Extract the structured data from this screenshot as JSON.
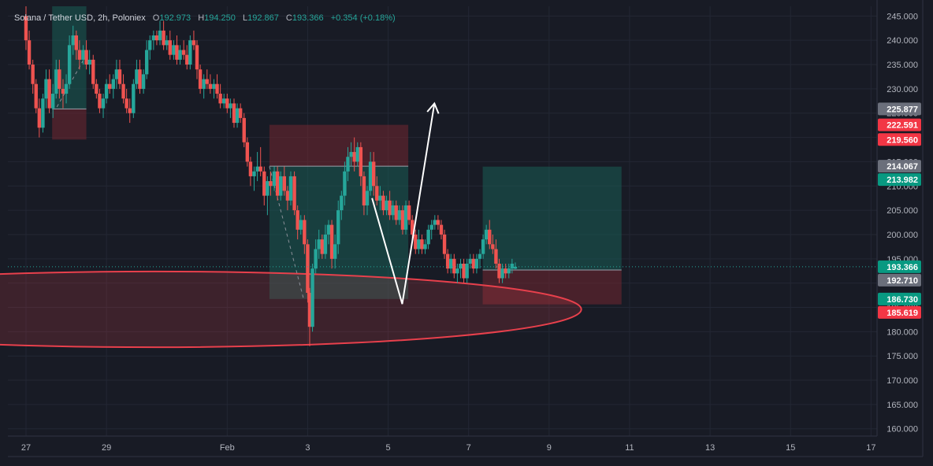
{
  "header": {
    "symbol": "Solana / Tether USD, 2h, Poloniex",
    "open_label": "O",
    "open": "192.973",
    "high_label": "H",
    "high": "194.250",
    "low_label": "L",
    "low": "192.867",
    "close_label": "C",
    "close": "193.366",
    "change": "+0.354 (+0.18%)"
  },
  "colors": {
    "background": "#181b25",
    "up": "#26a69a",
    "down": "#ef5350",
    "profit_zone": "#1a5d55",
    "loss_zone": "#6b2630",
    "ellipse": "#e8404c",
    "arrow": "#ffffff",
    "label_gray": "#6b6f7b"
  },
  "chart_data": {
    "type": "candlestick",
    "y_ticks": [
      "160.000",
      "165.000",
      "170.000",
      "175.000",
      "180.000",
      "185.000",
      "190.000",
      "195.000",
      "200.000",
      "205.000",
      "210.000",
      "215.000",
      "220.000",
      "225.000",
      "230.000",
      "235.000",
      "240.000",
      "245.000"
    ],
    "ylim": [
      158.5,
      247
    ],
    "x_ticks": [
      {
        "label": "27",
        "day": 0
      },
      {
        "label": "29",
        "day": 2
      },
      {
        "label": "Feb",
        "day": 5
      },
      {
        "label": "3",
        "day": 7
      },
      {
        "label": "5",
        "day": 9
      },
      {
        "label": "7",
        "day": 11
      },
      {
        "label": "9",
        "day": 13
      },
      {
        "label": "11",
        "day": 15
      },
      {
        "label": "13",
        "day": 17
      },
      {
        "label": "15",
        "day": 19
      },
      {
        "label": "17",
        "day": 21
      }
    ],
    "xlim": [
      -0.45,
      21.15
    ],
    "grid": true,
    "price_labels": [
      {
        "value": "225.877",
        "price": 225.877,
        "color": "#6b6f7b"
      },
      {
        "value": "222.591",
        "price": 222.591,
        "color": "#f23645"
      },
      {
        "value": "219.560",
        "price": 219.56,
        "color": "#f23645"
      },
      {
        "value": "214.067",
        "price": 214.067,
        "color": "#6b6f7b"
      },
      {
        "value": "213.982",
        "price": 213.982,
        "color": "#089981"
      },
      {
        "value": "193.366",
        "price": 193.366,
        "color": "#089981"
      },
      {
        "value": "192.710",
        "price": 192.71,
        "color": "#6b6f7b"
      },
      {
        "value": "186.730",
        "price": 186.73,
        "color": "#089981"
      },
      {
        "value": "185.619",
        "price": 185.619,
        "color": "#f23645"
      }
    ],
    "last_price": 193.366,
    "positions": [
      {
        "type": "long",
        "day_start": 0.65,
        "day_end": 1.5,
        "entry": 225.877,
        "stop": 219.56,
        "target": 247
      },
      {
        "type": "short",
        "day_start": 6.05,
        "day_end": 9.5,
        "entry": 214.067,
        "stop": 222.591,
        "target": 186.73
      },
      {
        "type": "long",
        "day_start": 11.35,
        "day_end": 14.8,
        "entry": 192.71,
        "stop": 185.619,
        "target": 213.982
      }
    ],
    "ellipse": {
      "day_center": 3.2,
      "price_center": 184.6,
      "day_radius": 10.6,
      "price_radius": 7.8
    },
    "projection_arrow": [
      [
        8.6,
        207.5
      ],
      [
        9.35,
        185.7
      ],
      [
        10.15,
        227.0
      ]
    ],
    "candles": [
      [
        0.0,
        245,
        247,
        238,
        240
      ],
      [
        0.08,
        240,
        242,
        234,
        235
      ],
      [
        0.17,
        235,
        236,
        229,
        231
      ],
      [
        0.25,
        231,
        232,
        225,
        226
      ],
      [
        0.33,
        226,
        228,
        220,
        222
      ],
      [
        0.42,
        222,
        229,
        221,
        228
      ],
      [
        0.5,
        228,
        234,
        226,
        232
      ],
      [
        0.58,
        232,
        234,
        225,
        226
      ],
      [
        0.67,
        226,
        231,
        224,
        229
      ],
      [
        0.75,
        229,
        236,
        228,
        234
      ],
      [
        0.83,
        234,
        236,
        228,
        230
      ],
      [
        0.92,
        230,
        232,
        226,
        229
      ],
      [
        1.0,
        229,
        233,
        227,
        231
      ],
      [
        1.08,
        231,
        241,
        230,
        239
      ],
      [
        1.17,
        239,
        243,
        237,
        241
      ],
      [
        1.25,
        241,
        242,
        236,
        238
      ],
      [
        1.33,
        238,
        240,
        234,
        236
      ],
      [
        1.42,
        236,
        239,
        235,
        238
      ],
      [
        1.5,
        238,
        240,
        234,
        235
      ],
      [
        1.58,
        235,
        238,
        233,
        236
      ],
      [
        1.67,
        236,
        237,
        230,
        231
      ],
      [
        1.75,
        231,
        232,
        228,
        229
      ],
      [
        1.83,
        229,
        230,
        225,
        226
      ],
      [
        1.92,
        226,
        229,
        224,
        228
      ],
      [
        2.0,
        228,
        232,
        227,
        231
      ],
      [
        2.08,
        231,
        233,
        229,
        230
      ],
      [
        2.17,
        230,
        233,
        228,
        232
      ],
      [
        2.25,
        232,
        236,
        230,
        234
      ],
      [
        2.33,
        234,
        236,
        230,
        231
      ],
      [
        2.42,
        231,
        233,
        227,
        228
      ],
      [
        2.5,
        228,
        230,
        225,
        226
      ],
      [
        2.58,
        226,
        228,
        223,
        225
      ],
      [
        2.67,
        225,
        232,
        224,
        231
      ],
      [
        2.75,
        231,
        236,
        230,
        234
      ],
      [
        2.83,
        234,
        236,
        229,
        230
      ],
      [
        2.92,
        230,
        234,
        229,
        233
      ],
      [
        3.0,
        233,
        240,
        232,
        238
      ],
      [
        3.08,
        238,
        241,
        236,
        240
      ],
      [
        3.17,
        240,
        242,
        238,
        241
      ],
      [
        3.25,
        241,
        242,
        239,
        240
      ],
      [
        3.33,
        240,
        244,
        239,
        242
      ],
      [
        3.42,
        242,
        244,
        238,
        239
      ],
      [
        3.5,
        239,
        241,
        238,
        240
      ],
      [
        3.58,
        240,
        242,
        236,
        237
      ],
      [
        3.67,
        237,
        240,
        236,
        239
      ],
      [
        3.75,
        239,
        241,
        235,
        236
      ],
      [
        3.83,
        236,
        239,
        235,
        238
      ],
      [
        3.92,
        238,
        240,
        236,
        237
      ],
      [
        4.0,
        237,
        239,
        234,
        235
      ],
      [
        4.08,
        235,
        241,
        234,
        240
      ],
      [
        4.17,
        240,
        242,
        238,
        239
      ],
      [
        4.25,
        239,
        240,
        232,
        234
      ],
      [
        4.33,
        234,
        235,
        229,
        230
      ],
      [
        4.42,
        230,
        233,
        228,
        232
      ],
      [
        4.5,
        232,
        234,
        230,
        231
      ],
      [
        4.58,
        231,
        233,
        229,
        230
      ],
      [
        4.67,
        230,
        232,
        228,
        231
      ],
      [
        4.75,
        231,
        233,
        228,
        229
      ],
      [
        4.83,
        229,
        231,
        226,
        227
      ],
      [
        4.92,
        227,
        229,
        226,
        228
      ],
      [
        5.0,
        228,
        229,
        225,
        226
      ],
      [
        5.08,
        226,
        228,
        224,
        227
      ],
      [
        5.17,
        227,
        228,
        222,
        223
      ],
      [
        5.25,
        223,
        227,
        222,
        226
      ],
      [
        5.33,
        226,
        227,
        223,
        224
      ],
      [
        5.42,
        224,
        225,
        218,
        219
      ],
      [
        5.5,
        219,
        220,
        214,
        215
      ],
      [
        5.58,
        215,
        216,
        210,
        212
      ],
      [
        5.67,
        212,
        214,
        209,
        213
      ],
      [
        5.75,
        213,
        217,
        211,
        214
      ],
      [
        5.83,
        214,
        218,
        212,
        213
      ],
      [
        5.92,
        213,
        214,
        206,
        208
      ],
      [
        6.0,
        208,
        212,
        204,
        211
      ],
      [
        6.08,
        211,
        213,
        208,
        210
      ],
      [
        6.17,
        210,
        214,
        209,
        213
      ],
      [
        6.25,
        213,
        214,
        207,
        208
      ],
      [
        6.33,
        208,
        213,
        207,
        212
      ],
      [
        6.42,
        212,
        214,
        208,
        209
      ],
      [
        6.5,
        209,
        210,
        205,
        207
      ],
      [
        6.58,
        207,
        213,
        206,
        212
      ],
      [
        6.67,
        212,
        213,
        204,
        205
      ],
      [
        6.75,
        205,
        206,
        199,
        201
      ],
      [
        6.83,
        201,
        204,
        200,
        203
      ],
      [
        6.92,
        203,
        204,
        196,
        198
      ],
      [
        7.0,
        198,
        199,
        186,
        188
      ],
      [
        7.05,
        188,
        189,
        177,
        181
      ],
      [
        7.12,
        181,
        194,
        180,
        193
      ],
      [
        7.2,
        193,
        199,
        192,
        197
      ],
      [
        7.28,
        197,
        201,
        195,
        199
      ],
      [
        7.36,
        199,
        200,
        195,
        196
      ],
      [
        7.44,
        196,
        202,
        195,
        200
      ],
      [
        7.52,
        200,
        203,
        198,
        202
      ],
      [
        7.6,
        202,
        203,
        193,
        195
      ],
      [
        7.68,
        195,
        200,
        193,
        198
      ],
      [
        7.76,
        198,
        207,
        196,
        205
      ],
      [
        7.84,
        205,
        209,
        203,
        208
      ],
      [
        7.92,
        208,
        215,
        206,
        213
      ],
      [
        8.0,
        213,
        218,
        211,
        216
      ],
      [
        8.08,
        216,
        219,
        214,
        217
      ],
      [
        8.16,
        217,
        220,
        213,
        215
      ],
      [
        8.24,
        215,
        219,
        214,
        218
      ],
      [
        8.32,
        218,
        219,
        210,
        212
      ],
      [
        8.4,
        212,
        213,
        204,
        206
      ],
      [
        8.48,
        206,
        210,
        204,
        209
      ],
      [
        8.56,
        209,
        217,
        208,
        215
      ],
      [
        8.64,
        215,
        217,
        208,
        210
      ],
      [
        8.72,
        210,
        212,
        206,
        207
      ],
      [
        8.8,
        207,
        210,
        205,
        208
      ],
      [
        8.88,
        208,
        209,
        204,
        205
      ],
      [
        8.96,
        205,
        208,
        204,
        207
      ],
      [
        9.04,
        207,
        209,
        203,
        204
      ],
      [
        9.12,
        204,
        207,
        203,
        206
      ],
      [
        9.2,
        206,
        207,
        202,
        203
      ],
      [
        9.28,
        203,
        206,
        202,
        205
      ],
      [
        9.36,
        205,
        206,
        200,
        201
      ],
      [
        9.44,
        201,
        207,
        200,
        206
      ],
      [
        9.52,
        206,
        207,
        202,
        203
      ],
      [
        9.6,
        203,
        204,
        199,
        200
      ],
      [
        9.68,
        200,
        201,
        196,
        197
      ],
      [
        9.76,
        197,
        201,
        196,
        199
      ],
      [
        9.84,
        199,
        200,
        196,
        197
      ],
      [
        9.92,
        197,
        199,
        196,
        198
      ],
      [
        10.0,
        198,
        202,
        197,
        201
      ],
      [
        10.08,
        201,
        203,
        199,
        202
      ],
      [
        10.16,
        202,
        204,
        201,
        203
      ],
      [
        10.24,
        203,
        204,
        201,
        202
      ],
      [
        10.32,
        202,
        203,
        199,
        200
      ],
      [
        10.4,
        200,
        201,
        195,
        196
      ],
      [
        10.48,
        196,
        197,
        192,
        193
      ],
      [
        10.56,
        193,
        196,
        192,
        195
      ],
      [
        10.64,
        195,
        196,
        191,
        192
      ],
      [
        10.72,
        192,
        194,
        190,
        193
      ],
      [
        10.8,
        193,
        195,
        191,
        194
      ],
      [
        10.88,
        194,
        195,
        190,
        191
      ],
      [
        10.96,
        191,
        195,
        190,
        194
      ],
      [
        11.04,
        194,
        196,
        193,
        195
      ],
      [
        11.12,
        195,
        196,
        192,
        193
      ],
      [
        11.2,
        193,
        196,
        192,
        195
      ],
      [
        11.28,
        195,
        197,
        193,
        196
      ],
      [
        11.36,
        196,
        200,
        195,
        199
      ],
      [
        11.44,
        199,
        202,
        198,
        201
      ],
      [
        11.52,
        201,
        203,
        197,
        198
      ],
      [
        11.6,
        198,
        200,
        196,
        197
      ],
      [
        11.68,
        197,
        199,
        193,
        194
      ],
      [
        11.76,
        194,
        195,
        190,
        191
      ],
      [
        11.84,
        191,
        194,
        190,
        193
      ],
      [
        11.92,
        193,
        194,
        191,
        192
      ],
      [
        12.0,
        192,
        194,
        191,
        193
      ],
      [
        12.08,
        193,
        195,
        192,
        194
      ],
      [
        12.16,
        192.973,
        194.25,
        192.867,
        193.366
      ]
    ]
  }
}
